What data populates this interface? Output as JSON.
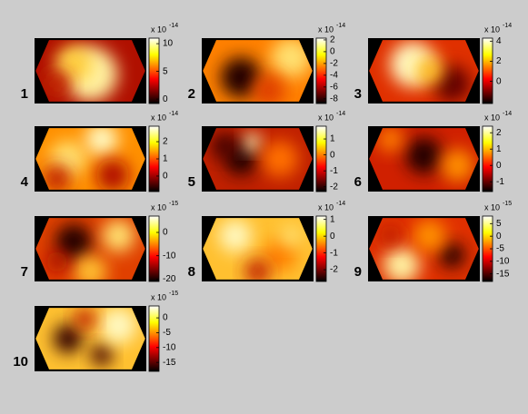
{
  "panels": [
    {
      "label": "1",
      "scale": "x 10",
      "exponent": "-14",
      "clim": [
        -0.8,
        11
      ],
      "ticks": [
        10,
        5,
        0
      ]
    },
    {
      "label": "2",
      "scale": "x 10",
      "exponent": "-14",
      "clim": [
        -8.8,
        2.3
      ],
      "ticks": [
        2,
        0,
        -2,
        -4,
        -6,
        -8
      ]
    },
    {
      "label": "3",
      "scale": "x 10",
      "exponent": "-14",
      "clim": [
        -2.2,
        4.3
      ],
      "ticks": [
        4,
        2,
        0
      ]
    },
    {
      "label": "4",
      "scale": "x 10",
      "exponent": "-14",
      "clim": [
        -0.9,
        2.9
      ],
      "ticks": [
        2,
        1,
        0
      ]
    },
    {
      "label": "5",
      "scale": "x 10",
      "exponent": "-14",
      "clim": [
        -2.3,
        1.8
      ],
      "ticks": [
        1,
        0,
        -1,
        -2
      ]
    },
    {
      "label": "6",
      "scale": "x 10",
      "exponent": "-14",
      "clim": [
        -1.6,
        2.4
      ],
      "ticks": [
        2,
        1,
        0,
        -1
      ]
    },
    {
      "label": "7",
      "scale": "x 10",
      "exponent": "-15",
      "clim": [
        -21,
        7
      ],
      "ticks": [
        0,
        -10,
        -20
      ]
    },
    {
      "label": "8",
      "scale": "x 10",
      "exponent": "-14",
      "clim": [
        -2.7,
        1.2
      ],
      "ticks": [
        1,
        0,
        -1,
        -2
      ]
    },
    {
      "label": "9",
      "scale": "x 10",
      "exponent": "-15",
      "clim": [
        -18,
        8
      ],
      "ticks": [
        5,
        0,
        -5,
        -10,
        -15
      ]
    },
    {
      "label": "10",
      "scale": "x 10",
      "exponent": "-15",
      "clim": [
        -18,
        4
      ],
      "ticks": [
        0,
        -5,
        -10,
        -15
      ]
    }
  ]
}
